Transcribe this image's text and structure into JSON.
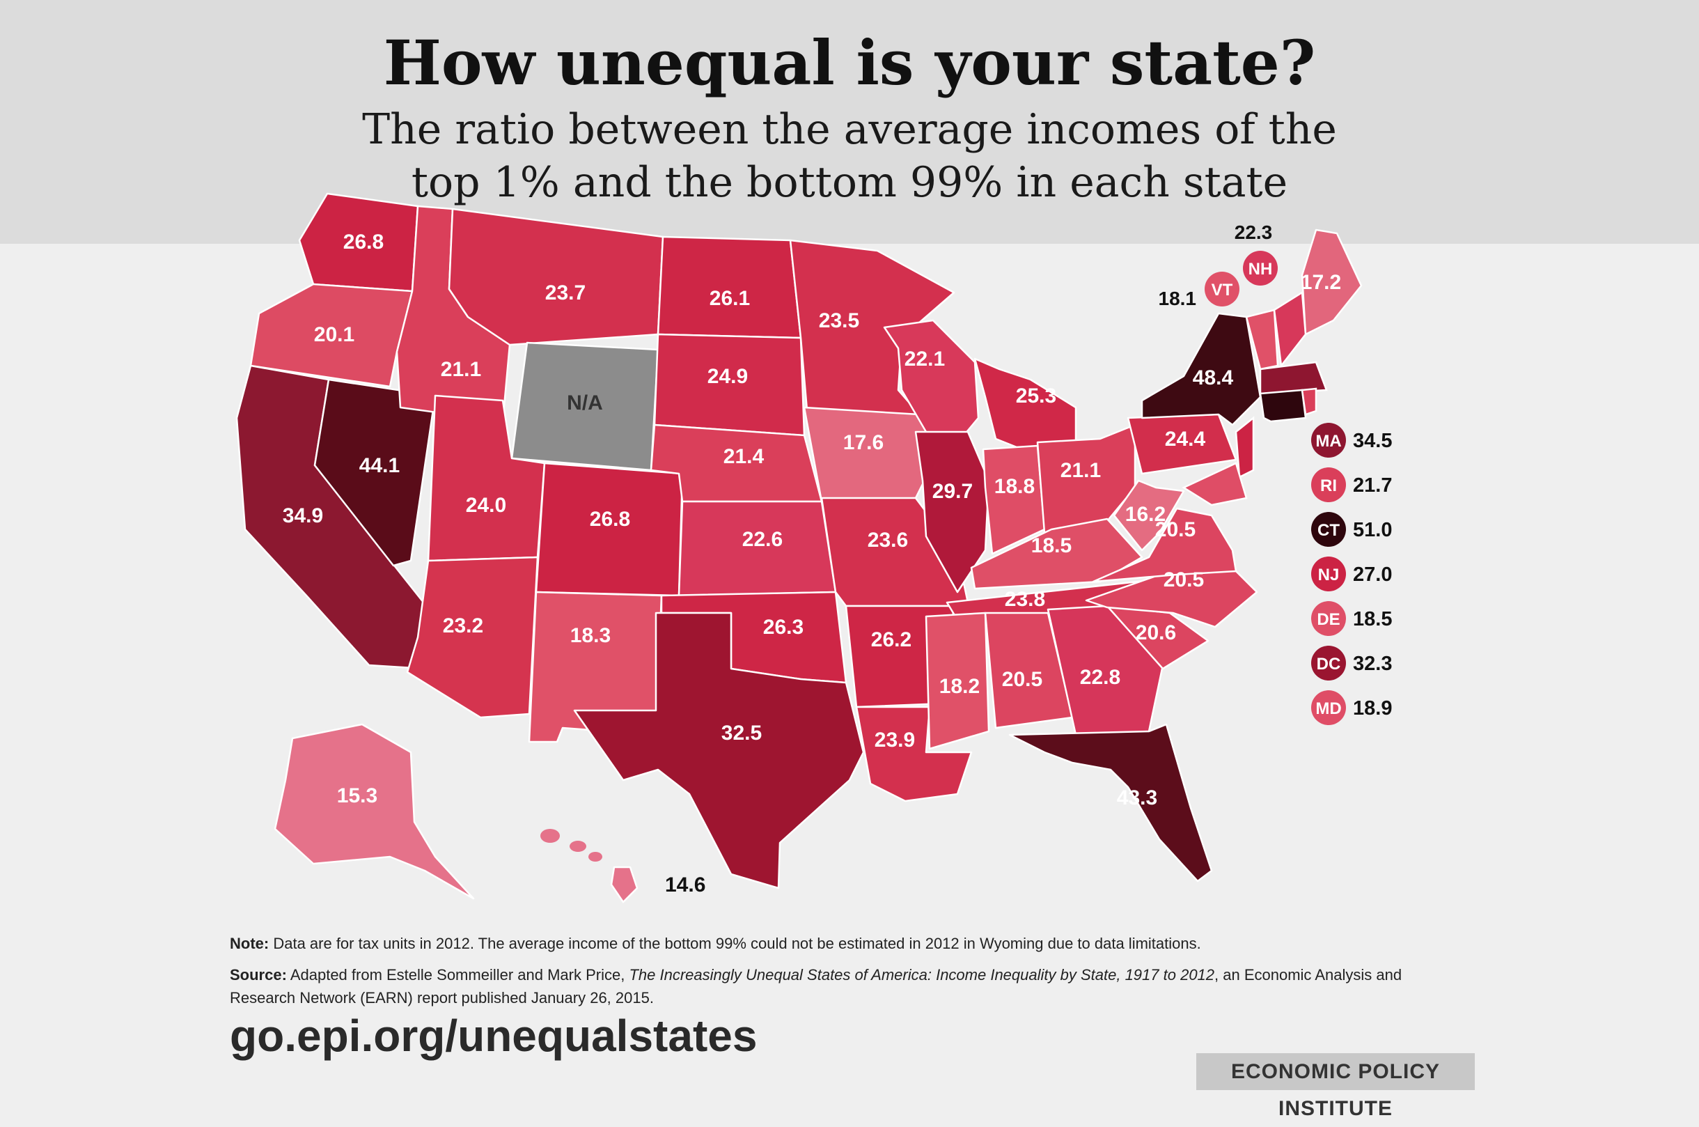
{
  "header": {
    "title": "How unequal is your state?",
    "subtitle_line1": "The ratio between the average incomes of the",
    "subtitle_line2": "top 1% and the bottom 99% in each state"
  },
  "chart_data": {
    "type": "choropleth",
    "measure": "ratio top 1% / bottom 99% average income",
    "colors": {
      "low": "#e3687e",
      "mid": "#d42a48",
      "high": "#9e1530",
      "max": "#3e0a12",
      "na": "#8c8c8c",
      "stroke": "#ffffff"
    },
    "states": [
      {
        "abbr": "WA",
        "value": "26.8",
        "color": "#cc2344"
      },
      {
        "abbr": "OR",
        "value": "20.1",
        "color": "#dd4b63"
      },
      {
        "abbr": "CA",
        "value": "34.9",
        "color": "#8c1830"
      },
      {
        "abbr": "NV",
        "value": "44.1",
        "color": "#5a0c19"
      },
      {
        "abbr": "ID",
        "value": "21.1",
        "color": "#da3f5a"
      },
      {
        "abbr": "MT",
        "value": "23.7",
        "color": "#d3304e"
      },
      {
        "abbr": "WY",
        "value": "N/A",
        "color": "#8c8c8c"
      },
      {
        "abbr": "UT",
        "value": "24.0",
        "color": "#d3304e"
      },
      {
        "abbr": "AZ",
        "value": "23.2",
        "color": "#d5344f"
      },
      {
        "abbr": "CO",
        "value": "26.8",
        "color": "#cc2344"
      },
      {
        "abbr": "NM",
        "value": "18.3",
        "color": "#e05168"
      },
      {
        "abbr": "ND",
        "value": "26.1",
        "color": "#ce2646"
      },
      {
        "abbr": "SD",
        "value": "24.9",
        "color": "#d12b4b"
      },
      {
        "abbr": "NE",
        "value": "21.4",
        "color": "#da3f5a"
      },
      {
        "abbr": "KS",
        "value": "22.6",
        "color": "#d7385a"
      },
      {
        "abbr": "OK",
        "value": "26.3",
        "color": "#ce2646"
      },
      {
        "abbr": "TX",
        "value": "32.5",
        "color": "#9e1530"
      },
      {
        "abbr": "MN",
        "value": "23.5",
        "color": "#d3304e"
      },
      {
        "abbr": "IA",
        "value": "17.6",
        "color": "#e3687e"
      },
      {
        "abbr": "MO",
        "value": "23.6",
        "color": "#d3304e"
      },
      {
        "abbr": "AR",
        "value": "26.2",
        "color": "#ce2646"
      },
      {
        "abbr": "LA",
        "value": "23.9",
        "color": "#d3304e"
      },
      {
        "abbr": "WI",
        "value": "22.1",
        "color": "#d8395a"
      },
      {
        "abbr": "IL",
        "value": "29.7",
        "color": "#b0193a"
      },
      {
        "abbr": "MI",
        "value": "25.3",
        "color": "#d02848"
      },
      {
        "abbr": "IN",
        "value": "18.8",
        "color": "#df4d66"
      },
      {
        "abbr": "OH",
        "value": "21.1",
        "color": "#da3f5a"
      },
      {
        "abbr": "KY",
        "value": "18.5",
        "color": "#df4f67"
      },
      {
        "abbr": "TN",
        "value": "23.8",
        "color": "#d3304e"
      },
      {
        "abbr": "MS",
        "value": "18.2",
        "color": "#e05168"
      },
      {
        "abbr": "AL",
        "value": "20.5",
        "color": "#dc4560"
      },
      {
        "abbr": "GA",
        "value": "22.8",
        "color": "#d6365a"
      },
      {
        "abbr": "FL",
        "value": "43.3",
        "color": "#5c0d1b"
      },
      {
        "abbr": "SC",
        "value": "20.6",
        "color": "#dc4560"
      },
      {
        "abbr": "NC",
        "value": "20.5",
        "color": "#dc4560"
      },
      {
        "abbr": "VA",
        "value": "20.5",
        "color": "#dc4560"
      },
      {
        "abbr": "WV",
        "value": "16.2",
        "color": "#e46c81"
      },
      {
        "abbr": "PA",
        "value": "24.4",
        "color": "#d22e4c"
      },
      {
        "abbr": "NY",
        "value": "48.4",
        "color": "#3e0a12"
      },
      {
        "abbr": "ME",
        "value": "17.2",
        "color": "#e2667c"
      },
      {
        "abbr": "AK",
        "value": "15.3",
        "color": "#e5728a"
      },
      {
        "abbr": "HI",
        "value": "14.6",
        "color": "#e5728a"
      }
    ],
    "northeast_callouts_top": [
      {
        "abbr": "NH",
        "value": "22.3",
        "color": "#d7385a"
      },
      {
        "abbr": "VT",
        "value": "18.1",
        "color": "#e05168"
      }
    ],
    "east_callouts": [
      {
        "abbr": "MA",
        "value": "34.5",
        "color": "#8e1630"
      },
      {
        "abbr": "RI",
        "value": "21.7",
        "color": "#da3f5a"
      },
      {
        "abbr": "CT",
        "value": "51.0",
        "color": "#2e060d"
      },
      {
        "abbr": "NJ",
        "value": "27.0",
        "color": "#cc2344"
      },
      {
        "abbr": "DE",
        "value": "18.5",
        "color": "#df4f67"
      },
      {
        "abbr": "DC",
        "value": "32.3",
        "color": "#9a1530"
      },
      {
        "abbr": "MD",
        "value": "18.9",
        "color": "#df4d66"
      }
    ]
  },
  "footer": {
    "note_label": "Note:",
    "note_text": " Data are for tax units in 2012. The average income of the bottom 99% could not be estimated in 2012 in Wyoming due to data limitations.",
    "source_label": "Source:",
    "source_text_1": " Adapted from Estelle Sommeiller and Mark Price, ",
    "source_title": "The Increasingly Unequal States of America: Income Inequality by State, 1917 to 2012",
    "source_text_2": ", an Economic Analysis and Research Network (EARN) report published January 26, 2015.",
    "url": "go.epi.org/unequalstates",
    "brand": "ECONOMIC POLICY INSTITUTE"
  }
}
